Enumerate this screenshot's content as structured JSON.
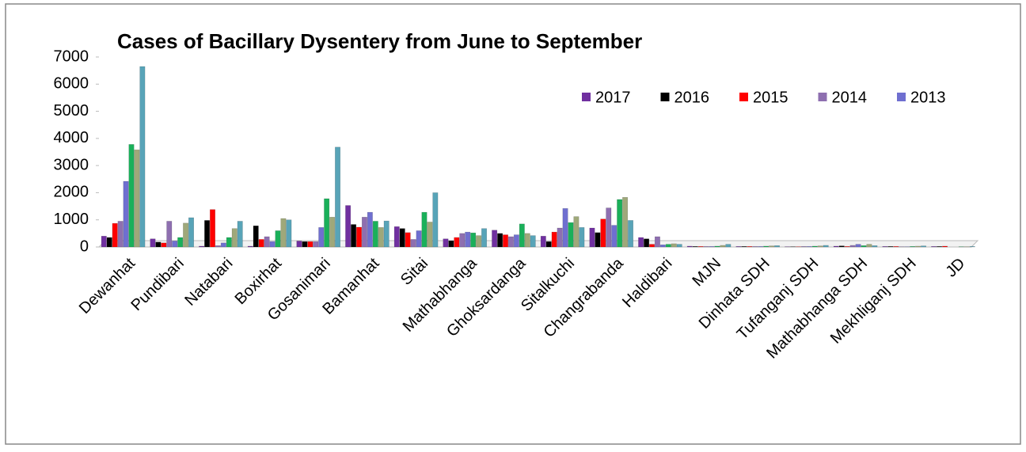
{
  "chart_data": {
    "type": "bar",
    "title": "Cases of Bacillary Dysentery from June to September",
    "categories": [
      "Dewanhat",
      "Pundibari",
      "Natabari",
      "Boxirhat",
      "Gosanimari",
      "Bamanhat",
      "Sitai",
      "Mathabhanga",
      "Ghoksardanga",
      "Sitalkuchi",
      "Changrabanda",
      "Haldibari",
      "MJN",
      "Dinhata SDH",
      "Tufanganj SDH",
      "Mathabhanga SDH",
      "Mekhliganj SDH",
      "JD"
    ],
    "series": [
      {
        "name": "2017",
        "color": "#7030a0",
        "values": [
          400,
          300,
          30,
          30,
          220,
          1530,
          750,
          300,
          620,
          400,
          700,
          350,
          30,
          20,
          10,
          30,
          20,
          20
        ]
      },
      {
        "name": "2016",
        "color": "#000000",
        "values": [
          350,
          180,
          980,
          780,
          200,
          830,
          680,
          230,
          500,
          200,
          530,
          300,
          20,
          20,
          10,
          40,
          20,
          20
        ]
      },
      {
        "name": "2015",
        "color": "#ff0000",
        "values": [
          870,
          150,
          1380,
          280,
          200,
          730,
          530,
          350,
          450,
          550,
          1030,
          100,
          20,
          20,
          10,
          20,
          20,
          30
        ]
      },
      {
        "name": "2014",
        "color": "#8e6fb0",
        "values": [
          950,
          950,
          50,
          380,
          200,
          1100,
          280,
          500,
          380,
          700,
          1440,
          380,
          20,
          20,
          20,
          60,
          10,
          0
        ]
      },
      {
        "name": "2013",
        "color": "#6f6fd0",
        "values": [
          2420,
          220,
          150,
          200,
          720,
          1280,
          600,
          550,
          450,
          1420,
          800,
          80,
          20,
          20,
          20,
          100,
          10,
          0
        ]
      },
      {
        "color": "#1ab05a",
        "values": [
          3780,
          350,
          350,
          600,
          1780,
          950,
          1280,
          520,
          850,
          900,
          1750,
          100,
          30,
          30,
          30,
          50,
          20,
          10
        ]
      },
      {
        "color": "#9fa87a",
        "values": [
          3580,
          880,
          680,
          1050,
          1100,
          720,
          920,
          420,
          500,
          1120,
          1830,
          120,
          60,
          40,
          40,
          100,
          30,
          10
        ]
      },
      {
        "color": "#58a4b8",
        "values": [
          6650,
          1080,
          950,
          1000,
          3680,
          960,
          2000,
          680,
          420,
          720,
          980,
          100,
          100,
          50,
          60,
          50,
          40,
          20
        ]
      }
    ],
    "ylim": [
      0,
      7000
    ],
    "yticks": [
      0,
      1000,
      2000,
      3000,
      4000,
      5000,
      6000,
      7000
    ],
    "legend": "top-right"
  }
}
